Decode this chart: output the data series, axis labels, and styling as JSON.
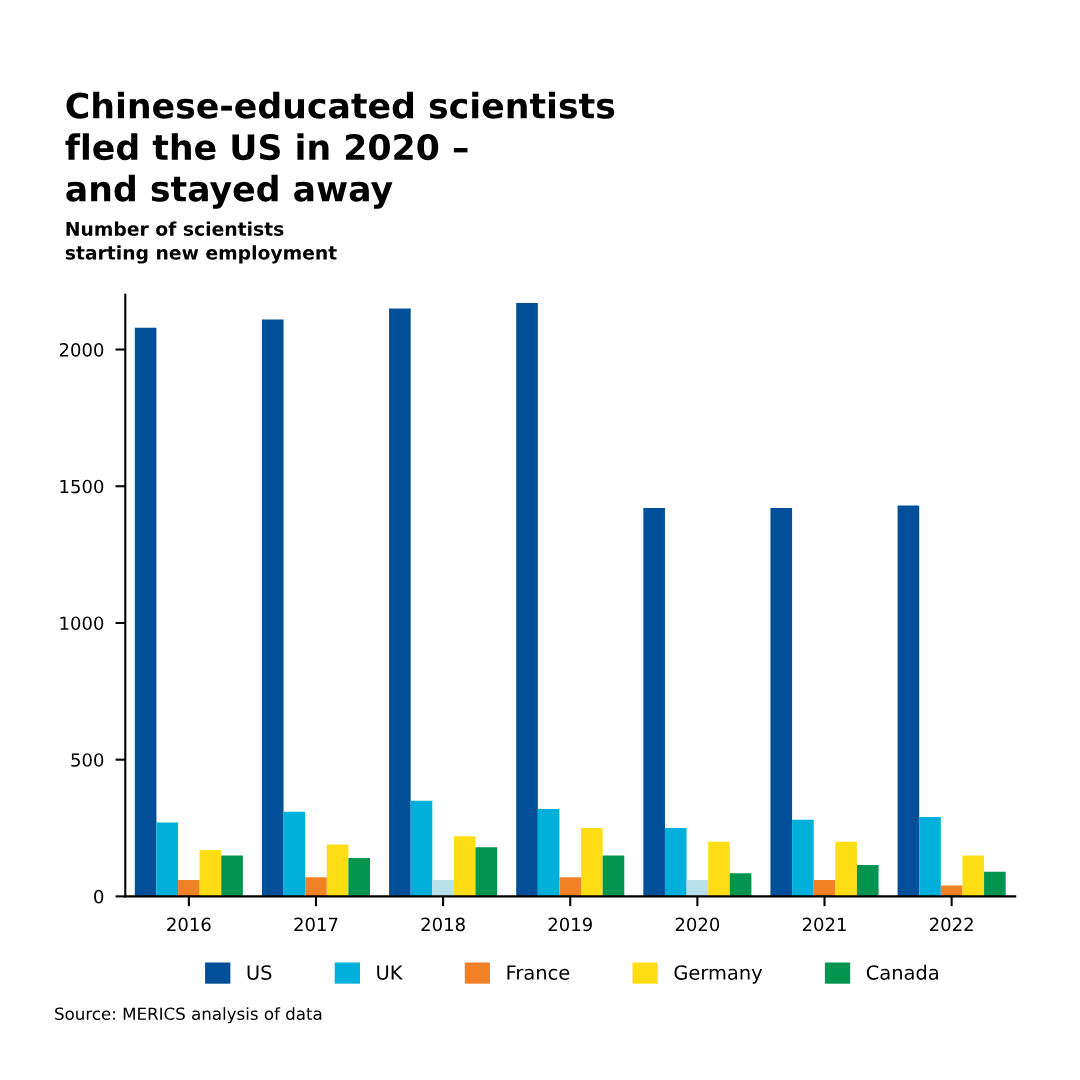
{
  "chart_data": {
    "type": "bar",
    "title": "Chinese-educated scientists\nfled the US in 2020 –\nand stayed away",
    "ylabel": "Number of scientists\nstarting new employment",
    "categories": [
      "2016",
      "2017",
      "2018",
      "2019",
      "2020",
      "2021",
      "2022"
    ],
    "series": [
      {
        "name": "US",
        "color": "#004f98",
        "values": [
          2080,
          2110,
          2150,
          2170,
          1420,
          1420,
          1430
        ]
      },
      {
        "name": "UK",
        "color": "#00b0da",
        "values": [
          270,
          310,
          350,
          320,
          250,
          280,
          290
        ]
      },
      {
        "name": "France",
        "color": "#f08127",
        "colors": [
          "#f08127",
          "#f08127",
          "#b9e1ec",
          "#f08127",
          "#b9e1ec",
          "#f08127",
          "#f08127"
        ],
        "values": [
          60,
          70,
          60,
          70,
          60,
          60,
          40
        ]
      },
      {
        "name": "Germany",
        "color": "#ffdd15",
        "values": [
          170,
          190,
          220,
          250,
          200,
          200,
          150
        ]
      },
      {
        "name": "Canada",
        "color": "#00944f",
        "values": [
          150,
          140,
          180,
          150,
          85,
          115,
          90
        ]
      }
    ],
    "ylim": [
      0,
      2200
    ],
    "yticks": [
      0,
      500,
      1000,
      1500,
      2000
    ],
    "grid": false,
    "legend": "bottom",
    "annotations": [
      "Source: MERICS analysis of data"
    ]
  }
}
